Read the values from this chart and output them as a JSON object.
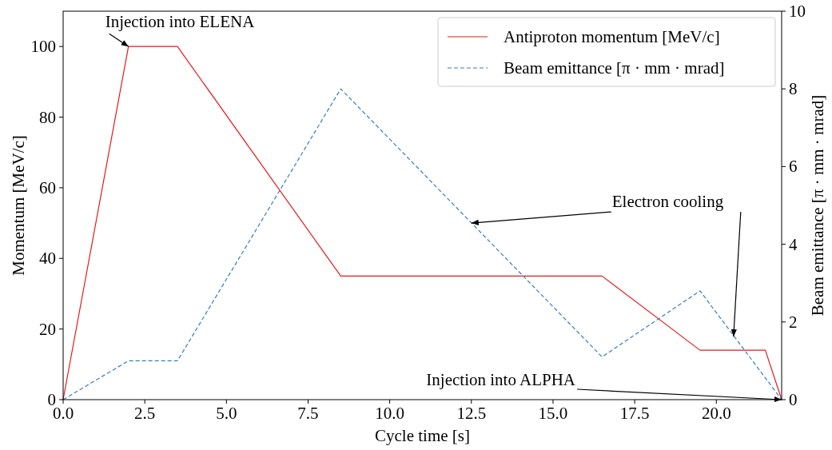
{
  "chart_data": {
    "type": "line",
    "xlabel": "Cycle time [s]",
    "ylabel": "Momentum [MeV/c]",
    "y2label": "Beam emittance [π · mm · mrad]",
    "xlim": [
      0,
      22
    ],
    "xticks": [
      {
        "value": 0,
        "label": "0.0"
      },
      {
        "value": 2.5,
        "label": "2.5"
      },
      {
        "value": 5,
        "label": "5.0"
      },
      {
        "value": 7.5,
        "label": "7.5"
      },
      {
        "value": 10,
        "label": "10.0"
      },
      {
        "value": 12.5,
        "label": "12.5"
      },
      {
        "value": 15,
        "label": "15.0"
      },
      {
        "value": 17.5,
        "label": "17.5"
      },
      {
        "value": 20,
        "label": "20.0"
      }
    ],
    "ylim": [
      0,
      110
    ],
    "yticks": [
      0,
      20,
      40,
      60,
      80,
      100
    ],
    "y2lim": [
      0,
      10
    ],
    "y2ticks": [
      0,
      2,
      4,
      6,
      8,
      10
    ],
    "legend": "top right",
    "grid": false,
    "series": [
      {
        "name": "Antiproton momentum [MeV/c]",
        "color": "#e41a1c",
        "line_style": "solid",
        "x": [
          0,
          2,
          3.5,
          8.5,
          16.5,
          19.5,
          21.5,
          22
        ],
        "values": [
          0,
          100,
          100,
          35,
          35,
          14,
          14,
          0
        ]
      },
      {
        "name": "Beam emittance [π · mm · mrad]",
        "color": "#377eb8",
        "line_style": "dashed",
        "axis": "y2",
        "x": [
          0,
          2,
          3.5,
          8.5,
          16.5,
          19.5,
          22
        ],
        "values": [
          0,
          1,
          1,
          8,
          1.1,
          2.8,
          0
        ]
      }
    ],
    "annotations": [
      {
        "text": "Injection into ELENA",
        "x": 2,
        "y": 100
      },
      {
        "text": "Electron cooling",
        "x": 12.5,
        "y": 50
      },
      {
        "text": "Injection into ALPHA",
        "x": 22,
        "y": 0
      }
    ]
  }
}
